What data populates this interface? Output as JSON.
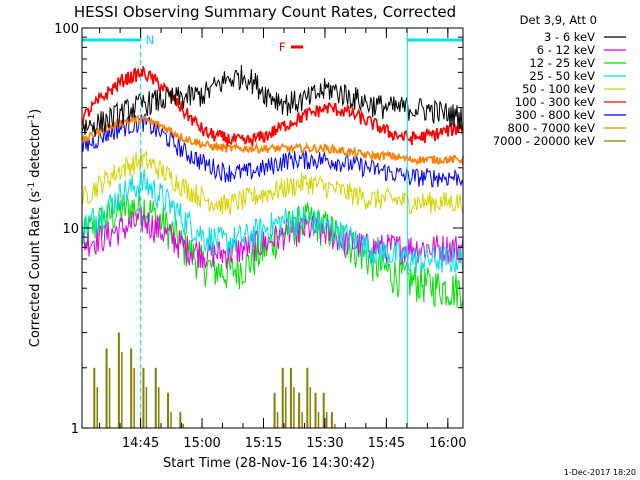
{
  "chart_data": {
    "type": "line",
    "title": "HESSI Observing Summary Count Rates, Corrected",
    "xlabel": "Start Time (28-Nov-16 14:30:42)",
    "ylabel_main": "Corrected Count Rate (s",
    "ylabel_sup1": "-1",
    "ylabel_mid": " detector",
    "ylabel_sup2": "-1",
    "ylabel_end": ")",
    "yscale": "log",
    "ylim": [
      1,
      100
    ],
    "xlim_minutes": [
      0,
      93
    ],
    "y_ticks": [
      {
        "value": 1,
        "label": "1"
      },
      {
        "value": 10,
        "label": "10"
      },
      {
        "value": 100,
        "label": "100"
      }
    ],
    "x_ticks": [
      {
        "minutes": 14.3,
        "label": "14:45"
      },
      {
        "minutes": 29.3,
        "label": "15:00"
      },
      {
        "minutes": 44.3,
        "label": "15:15"
      },
      {
        "minutes": 59.3,
        "label": "15:30"
      },
      {
        "minutes": 74.3,
        "label": "15:45"
      },
      {
        "minutes": 89.3,
        "label": "16:00"
      }
    ],
    "legend_title": "Det 3,9, Att 0",
    "legend_position": "outside-right",
    "series": [
      {
        "name": "3 - 6 keV",
        "color": "#000000",
        "x": [
          0,
          5,
          10,
          15,
          20,
          25,
          30,
          35,
          40,
          45,
          50,
          55,
          60,
          65,
          70,
          75,
          80,
          85,
          90,
          93
        ],
        "y": [
          32,
          34,
          38,
          42,
          44,
          45,
          47,
          55,
          58,
          47,
          42,
          44,
          50,
          46,
          42,
          40,
          40,
          39,
          37,
          36
        ]
      },
      {
        "name": "6 - 12 keV",
        "color": "#e000e0",
        "x": [
          0,
          5,
          10,
          15,
          20,
          25,
          30,
          35,
          40,
          45,
          50,
          55,
          60,
          65,
          70,
          75,
          80,
          85,
          90,
          93
        ],
        "y": [
          8.5,
          9,
          10,
          11,
          9.5,
          8,
          7.5,
          7.5,
          8,
          8.5,
          9.5,
          10,
          9.5,
          8.5,
          8,
          8,
          8,
          8,
          8,
          8
        ]
      },
      {
        "name": "12 - 25 keV",
        "color": "#00e000",
        "x": [
          0,
          5,
          10,
          15,
          20,
          25,
          30,
          35,
          40,
          45,
          50,
          55,
          60,
          65,
          70,
          75,
          80,
          85,
          90,
          93
        ],
        "y": [
          9,
          11,
          12.5,
          13,
          10.5,
          8,
          6.5,
          6,
          6.5,
          8,
          10,
          11,
          10,
          8.5,
          7,
          6,
          5.5,
          5.2,
          5,
          5
        ]
      },
      {
        "name": "25 - 50 keV",
        "color": "#00e0e0",
        "x": [
          0,
          5,
          10,
          15,
          20,
          25,
          30,
          35,
          40,
          45,
          50,
          55,
          60,
          65,
          70,
          75,
          80,
          85,
          90,
          93
        ],
        "y": [
          10,
          12,
          15,
          17,
          14,
          11,
          9,
          8.5,
          9,
          10,
          11,
          11,
          10,
          9,
          8,
          7.5,
          7,
          7,
          7,
          7
        ]
      },
      {
        "name": "50 - 100 keV",
        "color": "#d4d400",
        "x": [
          0,
          5,
          10,
          15,
          20,
          25,
          30,
          35,
          40,
          45,
          50,
          55,
          60,
          65,
          70,
          75,
          80,
          85,
          90,
          93
        ],
        "y": [
          14,
          17,
          20,
          22,
          19,
          16,
          14,
          13,
          14,
          15,
          16,
          17,
          16,
          15,
          14,
          14,
          13.5,
          13.5,
          13.5,
          13.5
        ]
      },
      {
        "name": "100 - 300 keV",
        "color": "#ff0000",
        "x": [
          0,
          5,
          10,
          15,
          20,
          25,
          30,
          35,
          40,
          45,
          50,
          55,
          60,
          65,
          70,
          75,
          80,
          85,
          90,
          93
        ],
        "y": [
          35,
          45,
          55,
          60,
          50,
          38,
          30,
          28,
          27,
          29,
          33,
          37,
          40,
          38,
          34,
          30,
          28,
          29,
          31,
          32
        ]
      },
      {
        "name": "300 - 800 keV",
        "color": "#0000ff",
        "x": [
          0,
          5,
          10,
          15,
          20,
          25,
          30,
          35,
          40,
          45,
          50,
          55,
          60,
          65,
          70,
          75,
          80,
          85,
          90,
          93
        ],
        "y": [
          25,
          29,
          32,
          34,
          29,
          24,
          21,
          19,
          19,
          20,
          22,
          22,
          22,
          21,
          20,
          19,
          18,
          18,
          18,
          18
        ]
      },
      {
        "name": "800 - 7000 keV",
        "color": "#ff7f00",
        "x": [
          0,
          5,
          10,
          15,
          20,
          25,
          30,
          35,
          40,
          45,
          50,
          55,
          60,
          65,
          70,
          75,
          80,
          85,
          90,
          93
        ],
        "y": [
          27,
          31,
          34,
          35,
          32,
          28,
          26,
          25,
          25,
          25,
          25,
          25,
          25,
          24,
          23,
          23,
          22,
          22,
          22,
          22
        ]
      },
      {
        "name": "7000 - 20000 keV",
        "color": "#808000",
        "x": [
          3,
          6,
          9,
          12,
          15,
          18,
          21,
          24,
          47,
          49,
          51,
          53,
          55,
          57,
          59,
          61
        ],
        "y": [
          2,
          2.5,
          3,
          2.5,
          2,
          2,
          1.5,
          1.2,
          1.5,
          2,
          2,
          1.5,
          2,
          1.5,
          1.5,
          1.2
        ]
      }
    ],
    "annotations": {
      "night_bars": [
        {
          "label": "N",
          "start_minutes": 0,
          "end_minutes": 14.3,
          "color": "#00e0e0"
        },
        {
          "label": "",
          "start_minutes": 79.4,
          "end_minutes": 93,
          "color": "#00e0e0"
        }
      ],
      "flare_flag": {
        "label": "F",
        "start_minutes": 51,
        "end_minutes": 54,
        "color": "#ff0000"
      },
      "vlines_minutes": [
        {
          "minutes": 14.3,
          "style": "dashed"
        },
        {
          "minutes": 79.4,
          "style": "solid"
        },
        {
          "minutes": 93,
          "style": "dashed"
        }
      ]
    },
    "timestamp": "1-Dec-2017 18:20"
  }
}
